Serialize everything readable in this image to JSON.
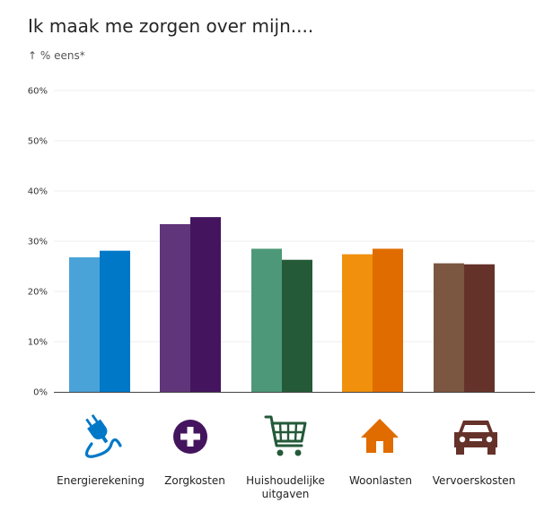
{
  "chart_data": {
    "type": "bar",
    "title": "Ik maak me zorgen over mijn....",
    "subtitle": "↑ % eens*",
    "ylim": [
      0,
      60
    ],
    "yticks": [
      "0%",
      "10%",
      "20%",
      "30%",
      "40%",
      "50%",
      "60%"
    ],
    "grid": true,
    "categories": [
      "Energierekening",
      "Zorgkosten",
      "Huishoudelijke uitgaven",
      "Woonlasten",
      "Vervoerskosten"
    ],
    "category_icons": [
      "power-plug-icon",
      "medical-cross-icon",
      "shopping-cart-icon",
      "house-icon",
      "car-icon"
    ],
    "series": [
      {
        "values": [
          26.8,
          33.4,
          28.5,
          27.4,
          25.6
        ]
      },
      {
        "values": [
          28.1,
          34.8,
          26.3,
          28.5,
          25.4
        ]
      }
    ],
    "colors": [
      [
        "#4aa3d8",
        "#0078c8"
      ],
      [
        "#61357a",
        "#44155e"
      ],
      [
        "#4d9878",
        "#245a38"
      ],
      [
        "#f0900c",
        "#e06c00"
      ],
      [
        "#7b5640",
        "#65322a"
      ]
    ]
  }
}
